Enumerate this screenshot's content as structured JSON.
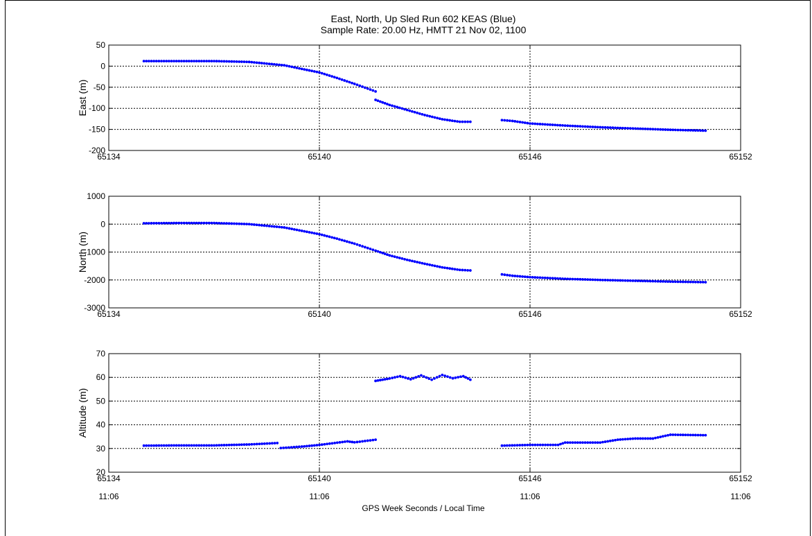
{
  "figure": {
    "title_line1": "East, North, Up Sled Run 602 KEAS (Blue)",
    "title_line2": "Sample Rate: 20.00 Hz,  HMTT 21 Nov 02, 1100",
    "xlabel": "GPS Week Seconds / Local Time",
    "time_labels": [
      "11:06",
      "11:06",
      "11:06",
      "11:06"
    ]
  },
  "colors": {
    "series": "#0000ff",
    "axis": "#000000",
    "grid": "#000000",
    "background": "#ffffff"
  },
  "chart_data": [
    {
      "type": "scatter",
      "ylabel": "East (m)",
      "xlim": [
        65134,
        65152
      ],
      "ylim": [
        -200,
        50
      ],
      "xticks": [
        65134,
        65140,
        65146,
        65152
      ],
      "yticks": [
        -200,
        -150,
        -100,
        -50,
        0,
        50
      ],
      "grid": true,
      "series": [
        {
          "segments": [
            {
              "x": [
                65135.0,
                65136.0,
                65137.0,
                65138.0,
                65139.0,
                65140.0,
                65140.5,
                65141.0,
                65141.6
              ],
              "y": [
                12,
                12,
                12,
                10,
                2,
                -15,
                -28,
                -42,
                -60
              ]
            },
            {
              "x": [
                65141.6,
                65142.0,
                65142.5,
                65143.0,
                65143.5,
                65144.0,
                65144.3
              ],
              "y": [
                -80,
                -92,
                -104,
                -116,
                -126,
                -132,
                -132
              ]
            },
            {
              "x": [
                65145.2,
                65145.5,
                65146.0,
                65147.0,
                65148.0,
                65149.0,
                65150.0,
                65151.0
              ],
              "y": [
                -128,
                -130,
                -136,
                -141,
                -145,
                -148,
                -151,
                -153
              ]
            }
          ]
        }
      ]
    },
    {
      "type": "scatter",
      "ylabel": "North (m)",
      "xlim": [
        65134,
        65152
      ],
      "ylim": [
        -3000,
        1000
      ],
      "xticks": [
        65134,
        65140,
        65146,
        65152
      ],
      "yticks": [
        -3000,
        -2000,
        -1000,
        0,
        1000
      ],
      "grid": true,
      "series": [
        {
          "segments": [
            {
              "x": [
                65135.0,
                65136.0,
                65137.0,
                65138.0,
                65139.0,
                65140.0,
                65140.5,
                65141.0,
                65141.6,
                65142.0,
                65142.5,
                65143.0,
                65143.5,
                65144.0,
                65144.3
              ],
              "y": [
                30,
                40,
                40,
                0,
                -120,
                -360,
                -520,
                -700,
                -950,
                -1120,
                -1280,
                -1420,
                -1550,
                -1640,
                -1660
              ]
            },
            {
              "x": [
                65145.2,
                65145.5,
                65146.0,
                65147.0,
                65148.0,
                65149.0,
                65150.0,
                65151.0
              ],
              "y": [
                -1800,
                -1850,
                -1900,
                -1960,
                -2000,
                -2030,
                -2060,
                -2080
              ]
            }
          ]
        }
      ]
    },
    {
      "type": "scatter",
      "ylabel": "Altitude (m)",
      "xlim": [
        65134,
        65152
      ],
      "ylim": [
        20,
        70
      ],
      "xticks": [
        65134,
        65140,
        65146,
        65152
      ],
      "yticks": [
        20,
        30,
        40,
        50,
        60,
        70
      ],
      "grid": true,
      "series": [
        {
          "segments": [
            {
              "x": [
                65135.0,
                65136.0,
                65137.0,
                65138.0,
                65138.8
              ],
              "y": [
                31.2,
                31.3,
                31.3,
                31.7,
                32.3
              ]
            },
            {
              "x": [
                65138.9,
                65139.5,
                65140.0,
                65140.8,
                65141.0,
                65141.6
              ],
              "y": [
                30.2,
                30.8,
                31.5,
                33.0,
                32.6,
                33.7
              ]
            },
            {
              "x": [
                65141.6,
                65142.0,
                65142.3,
                65142.6,
                65142.9,
                65143.2,
                65143.5,
                65143.8,
                65144.1,
                65144.3
              ],
              "y": [
                58.5,
                59.5,
                60.5,
                59.2,
                60.8,
                59.0,
                61.0,
                59.6,
                60.5,
                59.0
              ]
            },
            {
              "x": [
                65145.2,
                65146.0,
                65146.8,
                65147.0,
                65148.0,
                65148.5,
                65149.0,
                65149.5,
                65150.0,
                65151.0
              ],
              "y": [
                31.2,
                31.5,
                31.5,
                32.5,
                32.5,
                33.7,
                34.2,
                34.2,
                35.8,
                35.6
              ]
            }
          ]
        }
      ]
    }
  ]
}
